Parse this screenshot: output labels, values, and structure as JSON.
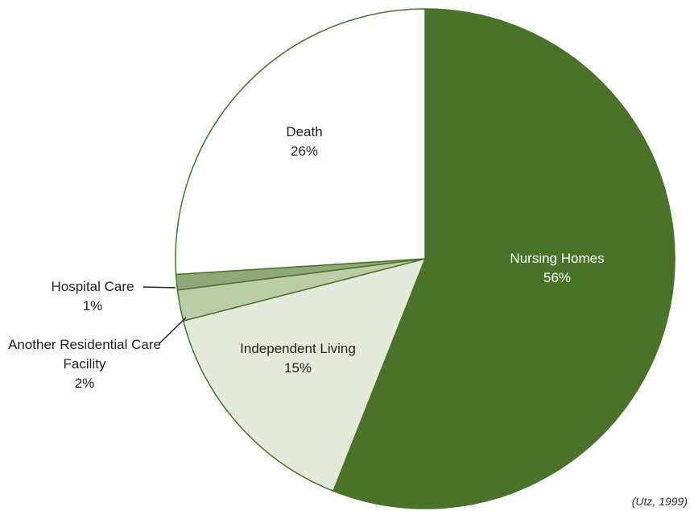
{
  "chart_data": {
    "type": "pie",
    "categories": [
      "Nursing Homes",
      "Independent Living",
      "Another Residential Care Facility",
      "Hospital Care",
      "Death"
    ],
    "values": [
      56,
      15,
      2,
      1,
      26
    ],
    "value_labels": [
      "56%",
      "15%",
      "2%",
      "1%",
      "26%"
    ],
    "colors": [
      "#4a7329",
      "#e4e9dc",
      "#bccba8",
      "#8fa878",
      "#ffffff"
    ],
    "annotation": "(Utz, 1999)"
  }
}
